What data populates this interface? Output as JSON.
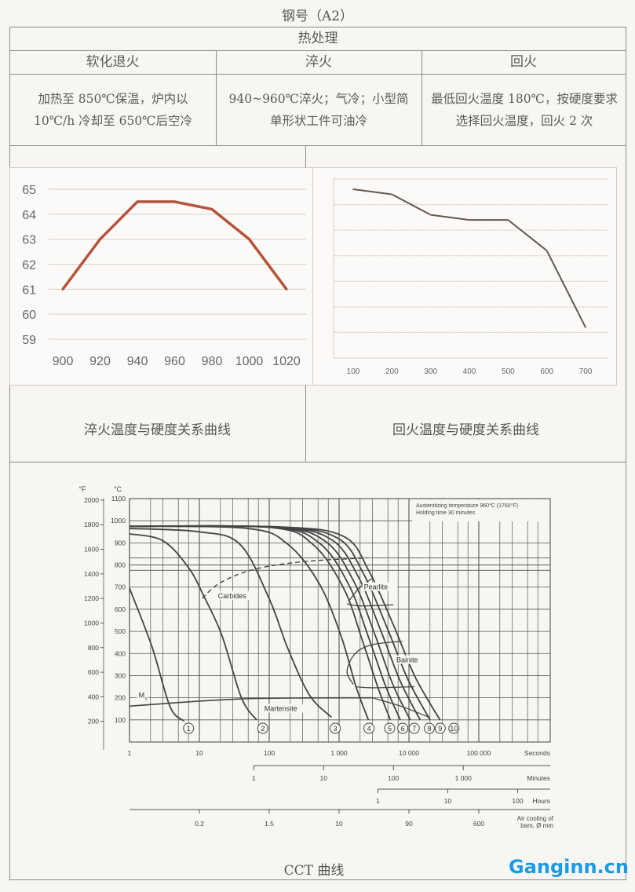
{
  "title": "钢号（A2）",
  "table": {
    "section_header": "热处理",
    "columns": [
      {
        "header": "软化退火",
        "content": "加热至 850℃保温，炉内以 10℃/h 冷却至 650℃后空冷"
      },
      {
        "header": "淬火",
        "content": "940~960℃淬火；气冷；小型简单形状工件可油冷"
      },
      {
        "header": "回火",
        "content": "最低回火温度 180℃，按硬度要求选择回火温度，回火 2 次"
      }
    ]
  },
  "captions": {
    "quench": "淬火温度与硬度关系曲线",
    "temper": "回火温度与硬度关系曲线",
    "cct": "CCT 曲线"
  },
  "watermark": "Ganginn.cn",
  "colors": {
    "quench_line": "#b5533b",
    "temper_line": "#62584f",
    "cct_line": "#444444",
    "watermark": "#1a9be6"
  },
  "chart_data": [
    {
      "type": "line",
      "x": [
        900,
        920,
        940,
        960,
        980,
        1000,
        1020
      ],
      "values": [
        61,
        63,
        64.5,
        64.5,
        64.2,
        63,
        61
      ],
      "xticks": [
        "900",
        "920",
        "940",
        "960",
        "980",
        "1000",
        "1020"
      ],
      "yticks": [
        "65",
        "64",
        "63",
        "62",
        "61",
        "60",
        "59"
      ],
      "ylim": [
        59,
        65
      ],
      "grid": true,
      "title": "",
      "xlabel": "",
      "ylabel": ""
    },
    {
      "type": "line",
      "x": [
        100,
        200,
        300,
        400,
        500,
        600,
        700
      ],
      "values": [
        63,
        62,
        58,
        57,
        57,
        51,
        36
      ],
      "xticks": [
        "100",
        "200",
        "300",
        "400",
        "500",
        "600",
        "700"
      ],
      "ylim": [
        30,
        65
      ],
      "grid": true,
      "title": "",
      "xlabel": "",
      "ylabel": ""
    },
    {
      "type": "line",
      "x_scale": "log",
      "xlim": [
        1,
        1000000
      ],
      "ylim": [
        0,
        1100
      ],
      "grid": true,
      "note_lines": [
        "Austenitizing temperature 960°C (1760°F)",
        "Holding time 30 minutes"
      ],
      "y_unit_c": "°C",
      "y_unit_f": "°F",
      "yticks_c": [
        "100",
        "200",
        "300",
        "400",
        "500",
        "600",
        "700",
        "800",
        "900",
        "1000",
        "1100"
      ],
      "yticks_f": [
        "200",
        "400",
        "600",
        "800",
        "1000",
        "1200",
        "1400",
        "1600",
        "1800",
        "2000"
      ],
      "axes": {
        "seconds": {
          "label": "Seconds",
          "ticks": [
            "1",
            "10",
            "100",
            "1 000",
            "10 000",
            "100 000"
          ]
        },
        "minutes": {
          "label": "Minutes",
          "ticks": [
            "1",
            "10",
            "100",
            "1 000"
          ]
        },
        "hours": {
          "label": "Hours",
          "ticks": [
            "1",
            "10",
            "100"
          ]
        },
        "bars": {
          "label_lines": [
            "Air cooling of",
            "bars, Ø mm"
          ],
          "ticks": [
            "0.2",
            "1.5",
            "10",
            "90",
            "600"
          ]
        }
      },
      "regions": [
        "Carbides",
        "Pearlite",
        "Bainite",
        "Martensite",
        "Ms"
      ],
      "series": [
        {
          "name": "1",
          "points": [
            [
              1,
              695
            ],
            [
              2.1,
              430
            ],
            [
              3.8,
              160
            ],
            [
              6,
              95
            ]
          ]
        },
        {
          "name": "2",
          "points": [
            [
              1,
              941
            ],
            [
              3,
              910
            ],
            [
              7,
              788
            ],
            [
              11.6,
              659
            ],
            [
              21,
              482
            ],
            [
              40,
              200
            ],
            [
              66,
              100
            ]
          ]
        },
        {
          "name": "3",
          "points": [
            [
              1,
              965
            ],
            [
              10,
              950
            ],
            [
              38,
              894
            ],
            [
              100,
              647
            ],
            [
              184,
              424
            ],
            [
              377,
              212
            ],
            [
              778,
              112
            ]
          ]
        },
        {
          "name": "4",
          "points": [
            [
              1,
              975
            ],
            [
              50,
              965
            ],
            [
              184,
              894
            ],
            [
              515,
              718
            ],
            [
              1060,
              482
            ],
            [
              1760,
              247
            ],
            [
              2630,
              100
            ]
          ]
        },
        {
          "name": "5",
          "points": [
            [
              1,
              975
            ],
            [
              100,
              970
            ],
            [
              419,
              894
            ],
            [
              1166,
              694
            ],
            [
              2154,
              459
            ],
            [
              3594,
              247
            ],
            [
              5410,
              100
            ]
          ]
        },
        {
          "name": "6",
          "points": [
            [
              1,
              975
            ],
            [
              110,
              970
            ],
            [
              514,
              901
            ],
            [
              1374,
              711
            ],
            [
              2644,
              473
            ],
            [
              4592,
              256
            ],
            [
              7510,
              100
            ]
          ]
        },
        {
          "name": "7",
          "points": [
            [
              1,
              975
            ],
            [
              120,
              970
            ],
            [
              631,
              908
            ],
            [
              1617,
              727
            ],
            [
              3245,
              487
            ],
            [
              5870,
              261
            ],
            [
              10420,
              100
            ]
          ]
        },
        {
          "name": "8",
          "points": [
            [
              1,
              975
            ],
            [
              130,
              970
            ],
            [
              774,
              915
            ],
            [
              1905,
              744
            ],
            [
              3981,
              501
            ],
            [
              7510,
              275
            ],
            [
              14450,
              100
            ]
          ]
        },
        {
          "name": "9",
          "points": [
            [
              1,
              975
            ],
            [
              140,
              971
            ],
            [
              950,
              922
            ],
            [
              2244,
              760
            ],
            [
              4887,
              515
            ],
            [
              9600,
              285
            ],
            [
              20050,
              100
            ]
          ]
        },
        {
          "name": "10",
          "points": [
            [
              1,
              975
            ],
            [
              150,
              972
            ],
            [
              1166,
              929
            ],
            [
              2644,
              776
            ],
            [
              5995,
              529
            ],
            [
              12270,
              294
            ],
            [
              27800,
              100
            ]
          ]
        }
      ],
      "curve_labels_at_seconds": [
        7,
        81,
        880,
        2680,
        5300,
        8150,
        11900,
        19600,
        28000,
        44000
      ],
      "boundaries": {
        "ms": [
          [
            1,
            162
          ],
          [
            40,
            195
          ],
          [
            3000,
            200
          ]
        ],
        "ms_tail": [
          [
            3000,
            200
          ],
          [
            8000,
            160
          ],
          [
            20000,
            110
          ]
        ],
        "carbides": [
          [
            11,
            650
          ],
          [
            20,
            720
          ],
          [
            60,
            780
          ],
          [
            300,
            815
          ],
          [
            2500,
            832
          ]
        ],
        "pearlite_finish": [
          [
            1400,
            640
          ],
          [
            2000,
            700
          ],
          [
            3000,
            740
          ]
        ],
        "pearlite_lower": [
          [
            1300,
            625
          ],
          [
            2000,
            615
          ],
          [
            6000,
            620
          ]
        ],
        "bainite_start": [
          [
            1600,
            260
          ],
          [
            1300,
            320
          ],
          [
            1700,
            400
          ],
          [
            3000,
            440
          ],
          [
            8000,
            455
          ]
        ],
        "bainite_end": [
          [
            1700,
            250
          ],
          [
            3000,
            245
          ],
          [
            12000,
            250
          ]
        ],
        "ac_lines": [
          832,
          800,
          776
        ]
      }
    }
  ]
}
